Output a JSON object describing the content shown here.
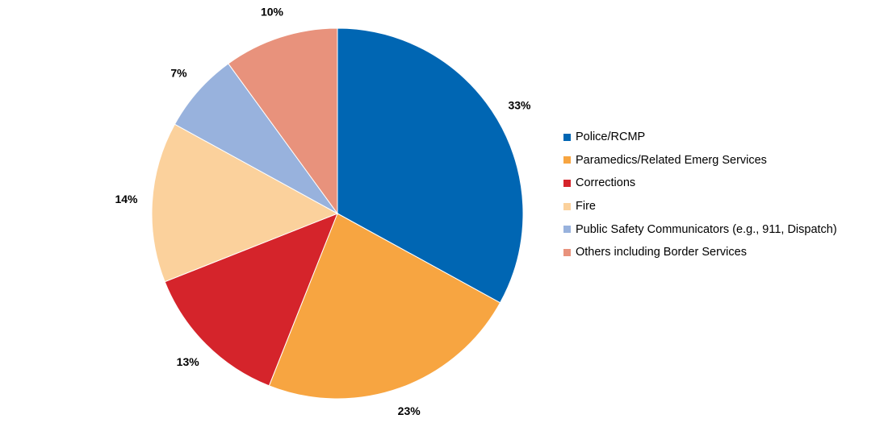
{
  "chart_data": {
    "type": "pie",
    "title": "",
    "legend_position": "right",
    "start_angle_deg": 0,
    "direction": "clockwise",
    "slices": [
      {
        "label": "Police/RCMP",
        "value": 33,
        "display": "33%",
        "color": "#0066B3"
      },
      {
        "label": "Paramedics/Related Emerg Services",
        "value": 23,
        "display": "23%",
        "color": "#F7A541"
      },
      {
        "label": "Corrections",
        "value": 13,
        "display": "13%",
        "color": "#D5242B"
      },
      {
        "label": "Fire",
        "value": 14,
        "display": "14%",
        "color": "#FBD19C"
      },
      {
        "label": "Public Safety Communicators (e.g., 911, Dispatch)",
        "value": 7,
        "display": "7%",
        "color": "#98B2DD"
      },
      {
        "label": "Others including Border Services",
        "value": 10,
        "display": "10%",
        "color": "#E8927C"
      }
    ]
  }
}
